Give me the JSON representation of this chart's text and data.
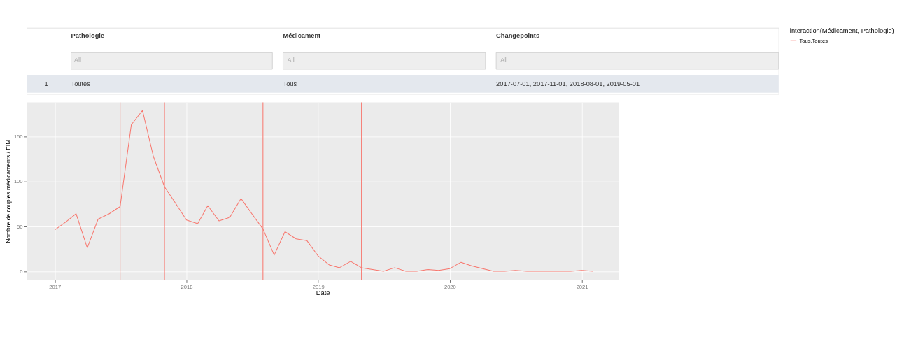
{
  "chart_data": {
    "type": "line",
    "annotations": [
      "Pathologie",
      "Médicament",
      "Changepoints",
      "All",
      "All",
      "All",
      "1",
      "Toutes",
      "Tous",
      "2017-07-01, 2017-11-01, 2018-08-01, 2019-05-01"
    ],
    "xlabel": "Date",
    "ylabel": "Nombre de couples médicaments / EIM",
    "legend_title": "interaction(Médicament, Pathologie)",
    "x": [
      "2017-01",
      "2017-02",
      "2017-03",
      "2017-04",
      "2017-05",
      "2017-06",
      "2017-07",
      "2017-08",
      "2017-09",
      "2017-10",
      "2017-11",
      "2017-12",
      "2018-01",
      "2018-02",
      "2018-03",
      "2018-04",
      "2018-05",
      "2018-06",
      "2018-07",
      "2018-08",
      "2018-09",
      "2018-10",
      "2018-11",
      "2018-12",
      "2019-01",
      "2019-02",
      "2019-03",
      "2019-04",
      "2019-05",
      "2019-06",
      "2019-07",
      "2019-08",
      "2019-09",
      "2019-10",
      "2019-11",
      "2019-12",
      "2020-01",
      "2020-02",
      "2020-03",
      "2020-04",
      "2020-05",
      "2020-06",
      "2020-07",
      "2020-08",
      "2020-09",
      "2020-10",
      "2020-11",
      "2020-12",
      "2021-01",
      "2021-02"
    ],
    "series": [
      {
        "name": "Tous.Toutes",
        "color": "#f8766d",
        "values": [
          46,
          55,
          64,
          26,
          58,
          64,
          72,
          163,
          179,
          128,
          94,
          76,
          57,
          53,
          73,
          56,
          60,
          81,
          64,
          47,
          18,
          44,
          36,
          34,
          17,
          7,
          4,
          11,
          4,
          2,
          0,
          4,
          0,
          0,
          2,
          1,
          3,
          10,
          6,
          3,
          0,
          0,
          1,
          0,
          0,
          0,
          0,
          0,
          1,
          0
        ]
      }
    ],
    "xlim": [
      "2016-10-15",
      "2021-04-13"
    ],
    "xticks": [
      {
        "value": "2017-01-01",
        "label": "2017"
      },
      {
        "value": "2018-01-01",
        "label": "2018"
      },
      {
        "value": "2019-01-01",
        "label": "2019"
      },
      {
        "value": "2020-01-01",
        "label": "2020"
      },
      {
        "value": "2021-01-01",
        "label": "2021"
      }
    ],
    "ylim": [
      -9.5,
      188
    ],
    "yticks": [
      0,
      50,
      100,
      150
    ],
    "ref_lines": [
      {
        "axis": "x",
        "value": "2017-07-01",
        "color": "#f8766d"
      },
      {
        "axis": "x",
        "value": "2017-11-01",
        "color": "#f8766d"
      },
      {
        "axis": "x",
        "value": "2018-08-01",
        "color": "#f8766d"
      },
      {
        "axis": "x",
        "value": "2019-05-01",
        "color": "#f8766d"
      }
    ],
    "grid": true,
    "legend": "right"
  }
}
